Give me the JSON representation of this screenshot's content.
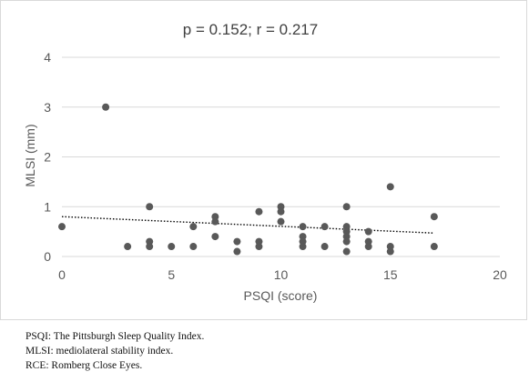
{
  "chart_data": {
    "type": "scatter",
    "title": "p = 0.152; r = 0.217",
    "xlabel": "PSQI (score)",
    "ylabel": "MLSI (mm)",
    "xlim": [
      0,
      20
    ],
    "ylim": [
      0,
      4
    ],
    "xticks": [
      0,
      5,
      10,
      15,
      20
    ],
    "yticks": [
      0,
      1,
      2,
      3,
      4
    ],
    "grid": "horizontal",
    "point_color": "#595959",
    "trendline": {
      "style": "dotted linear",
      "color": "#000000",
      "x": [
        0,
        17
      ],
      "y": [
        0.8,
        0.47
      ]
    },
    "points": [
      {
        "x": 0,
        "y": 0.6
      },
      {
        "x": 2,
        "y": 3.0
      },
      {
        "x": 3,
        "y": 0.2
      },
      {
        "x": 4,
        "y": 1.0
      },
      {
        "x": 4,
        "y": 0.3
      },
      {
        "x": 4,
        "y": 0.2
      },
      {
        "x": 5,
        "y": 0.2
      },
      {
        "x": 6,
        "y": 0.6
      },
      {
        "x": 6,
        "y": 0.2
      },
      {
        "x": 7,
        "y": 0.8
      },
      {
        "x": 7,
        "y": 0.7
      },
      {
        "x": 7,
        "y": 0.4
      },
      {
        "x": 8,
        "y": 0.3
      },
      {
        "x": 8,
        "y": 0.1
      },
      {
        "x": 9,
        "y": 0.9
      },
      {
        "x": 9,
        "y": 0.3
      },
      {
        "x": 9,
        "y": 0.2
      },
      {
        "x": 10,
        "y": 1.0
      },
      {
        "x": 10,
        "y": 0.9
      },
      {
        "x": 10,
        "y": 0.7
      },
      {
        "x": 11,
        "y": 0.6
      },
      {
        "x": 11,
        "y": 0.4
      },
      {
        "x": 11,
        "y": 0.3
      },
      {
        "x": 11,
        "y": 0.2
      },
      {
        "x": 12,
        "y": 0.6
      },
      {
        "x": 12,
        "y": 0.2
      },
      {
        "x": 13,
        "y": 1.0
      },
      {
        "x": 13,
        "y": 0.6
      },
      {
        "x": 13,
        "y": 0.5
      },
      {
        "x": 13,
        "y": 0.4
      },
      {
        "x": 13,
        "y": 0.3
      },
      {
        "x": 13,
        "y": 0.1
      },
      {
        "x": 14,
        "y": 0.5
      },
      {
        "x": 14,
        "y": 0.3
      },
      {
        "x": 14,
        "y": 0.2
      },
      {
        "x": 15,
        "y": 1.4
      },
      {
        "x": 15,
        "y": 0.2
      },
      {
        "x": 15,
        "y": 0.1
      },
      {
        "x": 17,
        "y": 0.8
      },
      {
        "x": 17,
        "y": 0.2
      }
    ]
  },
  "footnotes": [
    "PSQI: The Pittsburgh Sleep Quality Index.",
    "MLSI: mediolateral stability index.",
    "RCE: Romberg Close Eyes."
  ]
}
